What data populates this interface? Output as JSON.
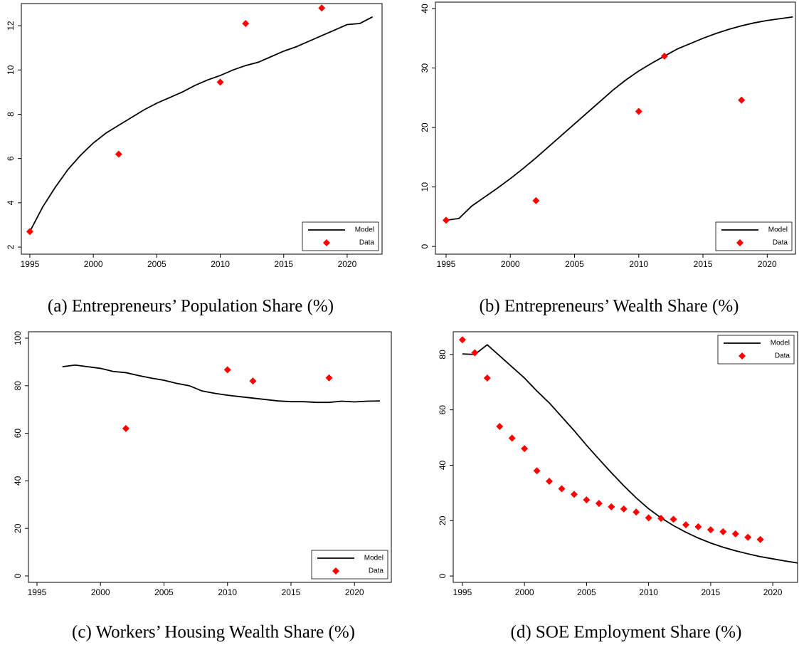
{
  "chart_data": [
    {
      "type": "line",
      "caption": "(a) Entrepreneurs’ Population Share (%)",
      "xlim": [
        1994.33,
        2022.75
      ],
      "xticks": [
        1995,
        2000,
        2005,
        2010,
        2015,
        2020
      ],
      "ylim": [
        1.68,
        13.0
      ],
      "yticks": [
        2,
        4,
        6,
        8,
        10,
        12
      ],
      "legend": "lower right",
      "series": [
        {
          "name": "Model",
          "style": "line",
          "color": "#000000",
          "x": [
            1995,
            1996,
            1997,
            1998,
            1999,
            2000,
            2001,
            2002,
            2003,
            2004,
            2005,
            2006,
            2007,
            2008,
            2009,
            2010,
            2011,
            2012,
            2013,
            2014,
            2015,
            2016,
            2017,
            2018,
            2019,
            2020,
            2021,
            2022
          ],
          "values": [
            2.7,
            3.8,
            4.7,
            5.5,
            6.15,
            6.7,
            7.15,
            7.5,
            7.85,
            8.2,
            8.5,
            8.75,
            9.0,
            9.3,
            9.55,
            9.75,
            10.0,
            10.2,
            10.35,
            10.6,
            10.85,
            11.05,
            11.3,
            11.55,
            11.8,
            12.05,
            12.1,
            12.4
          ]
        },
        {
          "name": "Data",
          "style": "diamond",
          "color": "#ff0000",
          "x": [
            1995,
            2002,
            2010,
            2012,
            2018
          ],
          "values": [
            2.7,
            6.2,
            9.45,
            12.1,
            12.8
          ]
        }
      ]
    },
    {
      "type": "line",
      "caption": "(b) Entrepreneurs’ Wealth Share (%)",
      "xlim": [
        1994.17,
        2022.2
      ],
      "xticks": [
        1995,
        2000,
        2005,
        2010,
        2015,
        2020
      ],
      "ylim": [
        -1.3,
        41.08
      ],
      "yticks": [
        0,
        10,
        20,
        30,
        40
      ],
      "legend": "lower right",
      "series": [
        {
          "name": "Model",
          "style": "line",
          "color": "#000000",
          "x": [
            1995,
            1996,
            1997,
            1998,
            1999,
            2000,
            2001,
            2002,
            2003,
            2004,
            2005,
            2006,
            2007,
            2008,
            2009,
            2010,
            2011,
            2012,
            2013,
            2014,
            2015,
            2016,
            2017,
            2018,
            2019,
            2020,
            2021,
            2022
          ],
          "values": [
            4.4,
            4.7,
            6.8,
            8.3,
            9.8,
            11.4,
            13.1,
            14.9,
            16.8,
            18.7,
            20.6,
            22.5,
            24.4,
            26.3,
            28.0,
            29.5,
            30.8,
            32.0,
            33.2,
            34.1,
            35.0,
            35.8,
            36.5,
            37.1,
            37.6,
            38.0,
            38.3,
            38.6
          ]
        },
        {
          "name": "Data",
          "style": "diamond",
          "color": "#ff0000",
          "x": [
            1995,
            2002,
            2010,
            2012,
            2018
          ],
          "values": [
            4.4,
            7.7,
            22.7,
            32.0,
            24.6
          ]
        }
      ]
    },
    {
      "type": "line",
      "caption": "(c) Workers’ Housing Wealth Share (%)",
      "xlim": [
        1994.33,
        2022.9
      ],
      "xticks": [
        1995,
        2000,
        2005,
        2010,
        2015,
        2020
      ],
      "ylim": [
        -2.7,
        102.7
      ],
      "yticks": [
        0,
        20,
        40,
        60,
        80,
        100
      ],
      "legend": "lower right",
      "series": [
        {
          "name": "Model",
          "style": "line",
          "color": "#000000",
          "x": [
            1997,
            1998,
            1999,
            2000,
            2001,
            2002,
            2003,
            2004,
            2005,
            2006,
            2007,
            2008,
            2009,
            2010,
            2011,
            2012,
            2013,
            2014,
            2015,
            2016,
            2017,
            2018,
            2019,
            2020,
            2021,
            2022
          ],
          "values": [
            88,
            88.7,
            88,
            87.3,
            86,
            85.5,
            84.3,
            83.2,
            82.3,
            81,
            80,
            77.8,
            76.8,
            76,
            75.4,
            74.8,
            74.2,
            73.6,
            73.3,
            73.3,
            73,
            73,
            73.5,
            73.2,
            73.5,
            73.6
          ]
        },
        {
          "name": "Data",
          "style": "diamond",
          "color": "#ff0000",
          "x": [
            2002,
            2010,
            2012,
            2018
          ],
          "values": [
            62,
            86.7,
            82,
            83.3
          ]
        }
      ]
    },
    {
      "type": "line",
      "caption": "(d) SOE Employment Share (%)",
      "xlim": [
        1994.26,
        2022.0
      ],
      "xticks": [
        1995,
        2000,
        2005,
        2010,
        2015,
        2020
      ],
      "ylim": [
        -2.3,
        88.2
      ],
      "yticks": [
        0,
        20,
        40,
        60,
        80
      ],
      "legend": "upper right",
      "series": [
        {
          "name": "Model",
          "style": "line",
          "color": "#000000",
          "x": [
            1995,
            1996,
            1997,
            1998,
            1999,
            2000,
            2001,
            2002,
            2003,
            2004,
            2005,
            2006,
            2007,
            2008,
            2009,
            2010,
            2011,
            2012,
            2013,
            2014,
            2015,
            2016,
            2017,
            2018,
            2019,
            2020,
            2021,
            2022
          ],
          "values": [
            80.2,
            80,
            83.5,
            79.5,
            75.5,
            71.5,
            66.8,
            62.5,
            57.5,
            52.5,
            47.2,
            42.2,
            37.3,
            32.6,
            28.2,
            24.3,
            21,
            18.2,
            15.8,
            13.7,
            11.9,
            10.4,
            9.1,
            8,
            7,
            6.2,
            5.4,
            4.7
          ]
        },
        {
          "name": "Data",
          "style": "diamond",
          "color": "#ff0000",
          "x": [
            1995,
            1996,
            1997,
            1998,
            1999,
            2000,
            2001,
            2002,
            2003,
            2004,
            2005,
            2006,
            2007,
            2008,
            2009,
            2010,
            2011,
            2012,
            2013,
            2014,
            2015,
            2016,
            2017,
            2018,
            2019
          ],
          "values": [
            85.3,
            80.6,
            71.5,
            54,
            49.8,
            46,
            38,
            34.2,
            31.5,
            29.5,
            27.5,
            26.2,
            25,
            24.2,
            23.1,
            21,
            20.8,
            20.5,
            18.5,
            17.8,
            16.7,
            16,
            15.2,
            14,
            13.2
          ]
        }
      ]
    }
  ]
}
